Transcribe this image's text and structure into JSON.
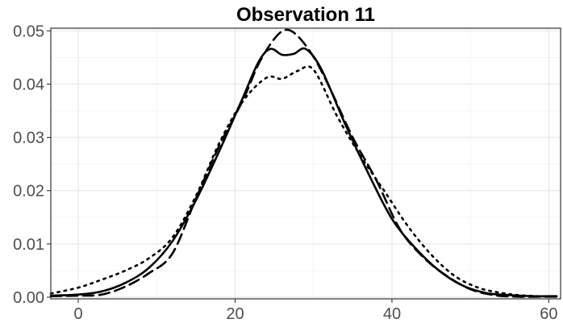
{
  "chart_data": {
    "type": "line",
    "title": "Observation 11",
    "xlabel": "",
    "ylabel": "",
    "xlim": [
      -3.5,
      61.5
    ],
    "ylim": [
      -0.0003,
      0.0505
    ],
    "x_ticks": [
      0,
      20,
      40,
      60
    ],
    "y_ticks": [
      0.0,
      0.01,
      0.02,
      0.03,
      0.04,
      0.05
    ],
    "y_tick_labels": [
      "0.00",
      "0.01",
      "0.02",
      "0.03",
      "0.04",
      "0.05"
    ],
    "grid": true,
    "series": [
      {
        "line_style": "solid",
        "x": [
          -3.5,
          0,
          3,
          6,
          9,
          12,
          15,
          18,
          21,
          23,
          24.5,
          26,
          27.5,
          29,
          31,
          34,
          37,
          40,
          43,
          46,
          49,
          52,
          55,
          58,
          61
        ],
        "y": [
          0.0003,
          0.0005,
          0.0011,
          0.0027,
          0.0055,
          0.0105,
          0.0182,
          0.0275,
          0.0375,
          0.0442,
          0.0466,
          0.0455,
          0.0457,
          0.0466,
          0.0428,
          0.0326,
          0.0232,
          0.0147,
          0.0092,
          0.005,
          0.0022,
          0.0008,
          0.0004,
          0.0002,
          0.0002
        ]
      },
      {
        "line_style": "dashed",
        "x": [
          -3.5,
          0,
          3,
          6,
          9,
          12,
          15,
          18,
          21,
          23,
          25,
          26.5,
          28,
          30,
          32,
          35,
          38,
          41,
          44,
          47,
          50,
          53,
          56,
          59,
          61
        ],
        "y": [
          0.0002,
          0.0003,
          0.0005,
          0.002,
          0.0045,
          0.0082,
          0.0185,
          0.0285,
          0.037,
          0.0438,
          0.0485,
          0.0502,
          0.049,
          0.0451,
          0.0395,
          0.03,
          0.022,
          0.0128,
          0.0075,
          0.004,
          0.0015,
          0.0004,
          0.0001,
          0.0001,
          0.0001
        ]
      },
      {
        "line_style": "dotted",
        "x": [
          -3.5,
          0,
          3,
          6,
          9,
          12,
          15,
          18,
          21,
          24,
          26,
          28,
          30,
          33,
          36,
          39,
          42,
          45,
          48,
          51,
          54,
          57,
          61
        ],
        "y": [
          0.0007,
          0.0018,
          0.0033,
          0.005,
          0.0073,
          0.0112,
          0.019,
          0.029,
          0.0368,
          0.0412,
          0.041,
          0.0425,
          0.0427,
          0.034,
          0.0265,
          0.02,
          0.0134,
          0.008,
          0.004,
          0.0018,
          0.0008,
          0.0003,
          0.0001
        ]
      }
    ]
  }
}
